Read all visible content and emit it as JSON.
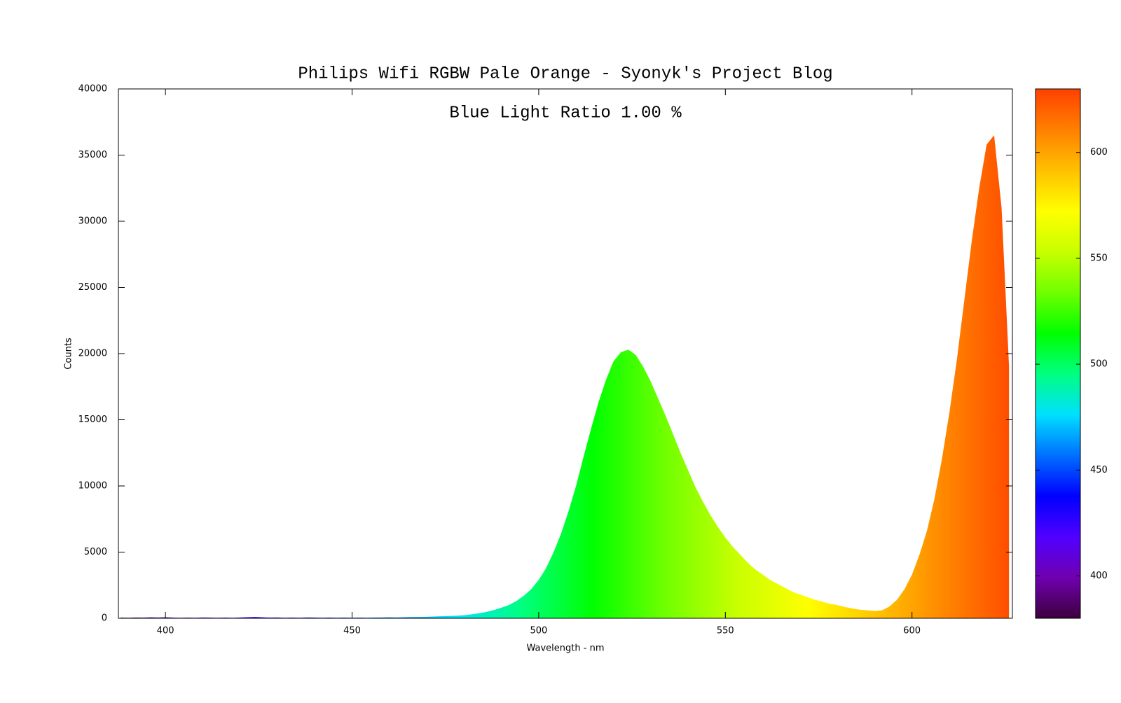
{
  "chart_data": {
    "type": "area",
    "title": "Philips Wifi RGBW Pale Orange - Syonyk's Project Blog",
    "annotation": "Blue Light Ratio 1.00 %",
    "x_label": "Wavelength - nm",
    "y_label": "Counts",
    "x": [
      388,
      390,
      392,
      394,
      396,
      398,
      400,
      402,
      404,
      406,
      408,
      410,
      412,
      414,
      416,
      418,
      420,
      422,
      424,
      426,
      428,
      430,
      432,
      434,
      436,
      438,
      440,
      442,
      444,
      446,
      448,
      450,
      452,
      454,
      456,
      458,
      460,
      462,
      464,
      466,
      468,
      470,
      472,
      474,
      476,
      478,
      480,
      482,
      484,
      486,
      488,
      490,
      492,
      494,
      496,
      498,
      500,
      502,
      504,
      506,
      508,
      510,
      512,
      514,
      516,
      518,
      520,
      522,
      524,
      526,
      528,
      530,
      532,
      534,
      536,
      538,
      540,
      542,
      544,
      546,
      548,
      550,
      552,
      554,
      556,
      558,
      560,
      562,
      564,
      566,
      568,
      570,
      572,
      574,
      576,
      578,
      580,
      582,
      584,
      586,
      588,
      590,
      592,
      594,
      596,
      598,
      600,
      602,
      604,
      606,
      608,
      610,
      612,
      614,
      616,
      618,
      620,
      622,
      624,
      626
    ],
    "values": [
      50,
      40,
      60,
      50,
      70,
      60,
      80,
      50,
      40,
      50,
      40,
      60,
      50,
      40,
      50,
      40,
      60,
      80,
      100,
      70,
      50,
      60,
      40,
      50,
      40,
      60,
      50,
      40,
      50,
      40,
      50,
      40,
      50,
      40,
      50,
      60,
      70,
      60,
      80,
      90,
      100,
      110,
      130,
      150,
      170,
      190,
      230,
      300,
      380,
      480,
      620,
      800,
      1000,
      1300,
      1700,
      2200,
      2900,
      3800,
      5000,
      6400,
      8100,
      10000,
      12200,
      14300,
      16300,
      18000,
      19400,
      20100,
      20300,
      19900,
      19000,
      17900,
      16600,
      15300,
      13900,
      12500,
      11200,
      9900,
      8800,
      7800,
      6900,
      6100,
      5400,
      4800,
      4200,
      3700,
      3300,
      2900,
      2600,
      2300,
      2000,
      1800,
      1600,
      1400,
      1250,
      1100,
      1000,
      850,
      750,
      650,
      600,
      550,
      600,
      900,
      1400,
      2200,
      3300,
      4800,
      6600,
      9000,
      12000,
      15500,
      19500,
      24000,
      28500,
      32500,
      35800,
      36500,
      31000,
      19000
    ],
    "xlim": [
      387.4,
      626.9
    ],
    "xticks": [
      400,
      450,
      500,
      550,
      600
    ],
    "ylim": [
      0,
      40000
    ],
    "yticks": [
      0,
      5000,
      10000,
      15000,
      20000,
      25000,
      30000,
      35000,
      40000
    ],
    "clim": [
      380,
      630
    ],
    "cticks": [
      400,
      450,
      500,
      550,
      600
    ],
    "colorscale": [
      "#3c003c",
      "#7000b0",
      "#5000ff",
      "#0000ff",
      "#0070ff",
      "#00e0ff",
      "#00ff80",
      "#00ff00",
      "#70ff00",
      "#c8ff00",
      "#ffff00",
      "#ffc000",
      "#ff8000",
      "#ff4000"
    ]
  }
}
